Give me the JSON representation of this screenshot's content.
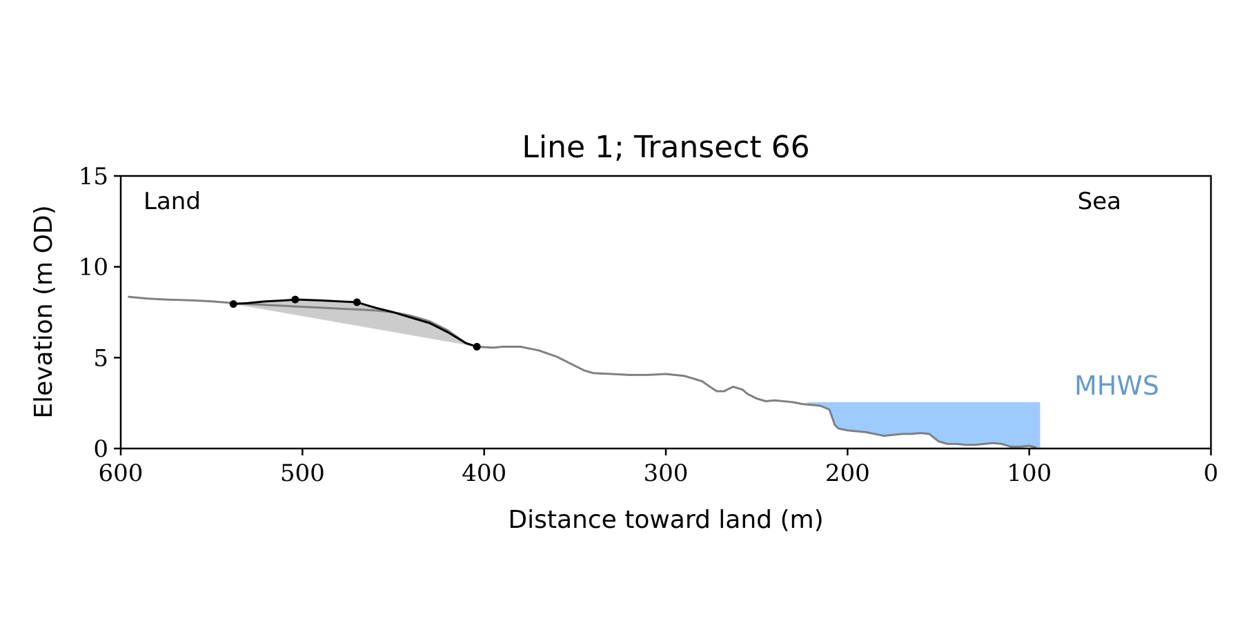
{
  "chart_data": {
    "type": "line",
    "title": "Line 1; Transect 66",
    "xlabel": "Distance toward land (m)",
    "ylabel": "Elevation (m OD)",
    "xlim": [
      600,
      0
    ],
    "ylim": [
      0,
      15
    ],
    "xticks": [
      600,
      500,
      400,
      300,
      200,
      100,
      0
    ],
    "yticks": [
      0,
      5,
      10,
      15
    ],
    "grid": false,
    "annotations": {
      "land": "Land",
      "sea": "Sea",
      "mhws": "MHWS"
    },
    "colors": {
      "profile": "#808080",
      "dune": "#000000",
      "dune_fill": "#cccccc",
      "water": "#9ecbff",
      "mhws_label": "#6699cc"
    },
    "mhws_level": 2.55,
    "mhws_extent": [
      223,
      94
    ],
    "profile": {
      "x": [
        596,
        585,
        575,
        560,
        550,
        538,
        530,
        520,
        510,
        500,
        490,
        480,
        470,
        460,
        450,
        440,
        430,
        420,
        410,
        404,
        395,
        390,
        380,
        375,
        370,
        360,
        350,
        345,
        340,
        330,
        320,
        310,
        300,
        290,
        285,
        280,
        275,
        272,
        268,
        263,
        258,
        255,
        250,
        245,
        240,
        230,
        225,
        220,
        215,
        210,
        207,
        205,
        200,
        195,
        190,
        185,
        180,
        175,
        170,
        165,
        160,
        155,
        150,
        145,
        140,
        135,
        130,
        125,
        120,
        115,
        110,
        105,
        100,
        96
      ],
      "y": [
        8.35,
        8.25,
        8.2,
        8.15,
        8.1,
        8.0,
        7.95,
        7.9,
        7.85,
        7.8,
        7.75,
        7.7,
        7.65,
        7.6,
        7.5,
        7.3,
        7.0,
        6.5,
        5.8,
        5.6,
        5.55,
        5.6,
        5.6,
        5.5,
        5.4,
        5.05,
        4.55,
        4.3,
        4.15,
        4.1,
        4.05,
        4.05,
        4.1,
        4.0,
        3.85,
        3.7,
        3.35,
        3.15,
        3.15,
        3.4,
        3.25,
        3.0,
        2.75,
        2.6,
        2.65,
        2.55,
        2.45,
        2.4,
        2.35,
        2.15,
        1.3,
        1.1,
        1.0,
        0.95,
        0.9,
        0.8,
        0.7,
        0.75,
        0.8,
        0.8,
        0.85,
        0.8,
        0.4,
        0.25,
        0.25,
        0.2,
        0.2,
        0.25,
        0.3,
        0.25,
        0.1,
        0.1,
        0.15,
        0.05
      ]
    },
    "dune": {
      "x": [
        538,
        530,
        520,
        510,
        503,
        490,
        480,
        470,
        465,
        460,
        450,
        440,
        430,
        420,
        410,
        404
      ],
      "y": [
        7.95,
        8.0,
        8.1,
        8.15,
        8.2,
        8.15,
        8.1,
        8.05,
        7.9,
        7.75,
        7.5,
        7.2,
        6.9,
        6.4,
        5.8,
        5.6
      ]
    },
    "dune_points": {
      "x": [
        538,
        504,
        470,
        404
      ],
      "y": [
        7.95,
        8.2,
        8.05,
        5.6
      ]
    }
  }
}
